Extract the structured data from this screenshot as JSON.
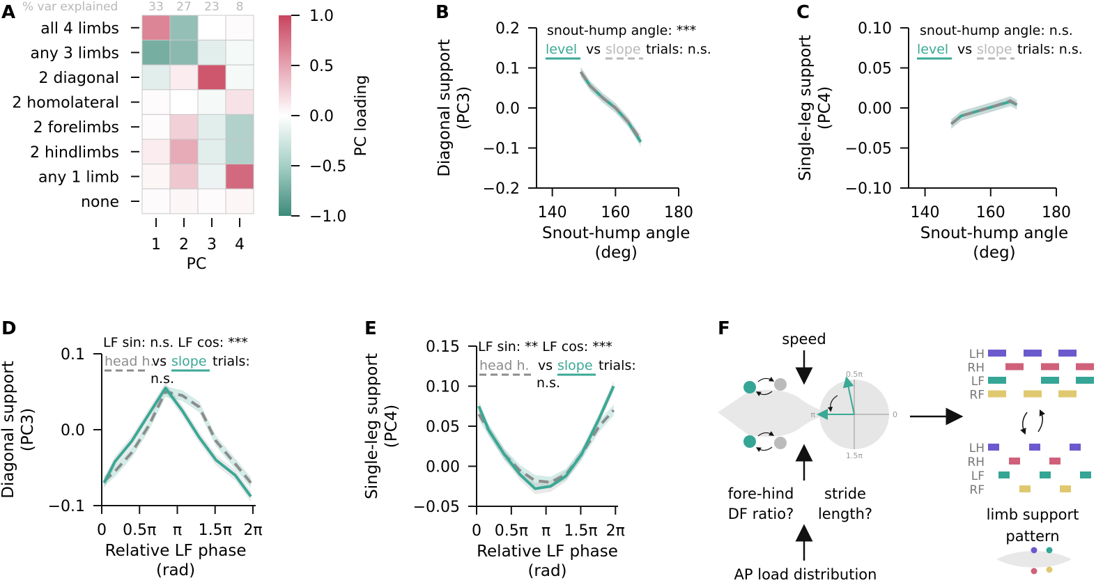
{
  "colors": {
    "teal": "#3aa895",
    "grey": "#8c8c8c",
    "light_grey": "#b8b8b8",
    "heat_pos": "#c8445e",
    "heat_neg": "#3d8b7a",
    "lh": "#6a5acd",
    "rh": "#d0607a",
    "lf": "#35a596",
    "rf": "#e0c870",
    "mouse_body": "#e8e8e8"
  },
  "panels": {
    "A": "A",
    "B": "B",
    "C": "C",
    "D": "D",
    "E": "E",
    "F": "F"
  },
  "chart_data": [
    {
      "id": "A",
      "type": "heatmap",
      "title": "",
      "var_explained_label": "% var explained",
      "var_explained": [
        "33",
        "27",
        "23",
        "8"
      ],
      "rows": [
        "all 4 limbs",
        "any 3 limbs",
        "2 diagonal",
        "2 homolateral",
        "2 forelimbs",
        "2 hindlimbs",
        "any 1 limb",
        "none"
      ],
      "columns": [
        "1",
        "2",
        "3",
        "4"
      ],
      "xlabel": "PC",
      "values": [
        [
          0.65,
          -0.55,
          0.0,
          0.02
        ],
        [
          -0.7,
          -0.6,
          -0.15,
          -0.05
        ],
        [
          -0.15,
          0.1,
          0.9,
          -0.05
        ],
        [
          0.02,
          0.0,
          -0.05,
          0.15
        ],
        [
          0.02,
          0.25,
          -0.15,
          -0.4
        ],
        [
          0.1,
          0.45,
          -0.15,
          -0.4
        ],
        [
          0.05,
          0.3,
          -0.1,
          0.8
        ],
        [
          0.02,
          0.05,
          0.02,
          0.05
        ]
      ],
      "colorbar": {
        "label": "PC loading",
        "ticks": [
          "1.0",
          "0.5",
          "0.0",
          "−0.5",
          "−1.0"
        ],
        "range": [
          -1,
          1
        ]
      }
    },
    {
      "id": "B",
      "type": "line",
      "xlabel": "Snout-hump angle",
      "xlabel2": "(deg)",
      "ylabel": "Diagonal support",
      "ylabel2": "(PC3)",
      "xlim": [
        135,
        180
      ],
      "ylim": [
        -0.2,
        0.2
      ],
      "xticks": [
        "140",
        "160",
        "180"
      ],
      "yticks": [
        "0.2",
        "0.1",
        "0.0",
        "−0.1",
        "−0.2"
      ],
      "annotation1": "snout-hump angle: ***",
      "legend": {
        "a": "level",
        "vs": "vs",
        "b": "slope",
        "tail": "trials: n.s."
      },
      "series": [
        {
          "name": "level",
          "x": [
            149,
            152,
            156,
            160,
            164,
            168
          ],
          "y": [
            0.09,
            0.055,
            0.025,
            0.0,
            -0.035,
            -0.085
          ]
        },
        {
          "name": "slope",
          "x": [
            149,
            152,
            156,
            160,
            164,
            168
          ],
          "y": [
            0.09,
            0.055,
            0.025,
            0.0,
            -0.035,
            -0.08
          ]
        }
      ]
    },
    {
      "id": "C",
      "type": "line",
      "xlabel": "Snout-hump angle",
      "xlabel2": "(deg)",
      "ylabel": "Single-leg support",
      "ylabel2": "(PC4)",
      "xlim": [
        135,
        180
      ],
      "ylim": [
        -0.1,
        0.1
      ],
      "xticks": [
        "140",
        "160",
        "180"
      ],
      "yticks": [
        "0.10",
        "0.05",
        "0.00",
        "−0.05",
        "−0.10"
      ],
      "annotation1": "snout-hump angle: n.s.",
      "legend": {
        "a": "level",
        "vs": "vs",
        "b": "slope",
        "tail": "trials: n.s."
      },
      "series": [
        {
          "name": "level",
          "x": [
            148,
            151,
            156,
            161,
            166,
            168
          ],
          "y": [
            -0.02,
            -0.01,
            -0.004,
            0.002,
            0.008,
            0.004
          ]
        },
        {
          "name": "slope",
          "x": [
            148,
            151,
            156,
            161,
            166,
            168
          ],
          "y": [
            -0.02,
            -0.01,
            -0.004,
            0.002,
            0.009,
            0.004
          ]
        }
      ]
    },
    {
      "id": "D",
      "type": "line",
      "xlabel": "Relative LF phase",
      "xlabel2": "(rad)",
      "ylabel": "Diagonal support",
      "ylabel2": "(PC3)",
      "xlim": [
        0,
        6.4
      ],
      "ylim": [
        -0.1,
        0.1
      ],
      "xticks": [
        "0",
        "0.5π",
        "π",
        "1.5π",
        "2π"
      ],
      "yticks": [
        "0.1",
        "0.0",
        "−0.1"
      ],
      "annotation1": "LF sin: n.s.  LF cos: ***",
      "legend": {
        "a": "head h.",
        "vs": "vs",
        "b": "slope",
        "tail": "trials:",
        "tail2": "n.s."
      },
      "series": [
        {
          "name": "head h.",
          "x": [
            0.1,
            0.55,
            1.25,
            1.95,
            2.65,
            3.35,
            4.05,
            4.75,
            5.55,
            6.2
          ],
          "y": [
            -0.068,
            -0.055,
            -0.03,
            0.005,
            0.05,
            0.045,
            0.03,
            -0.015,
            -0.045,
            -0.07
          ]
        },
        {
          "name": "slope",
          "x": [
            0.1,
            0.55,
            1.25,
            1.95,
            2.65,
            3.35,
            4.05,
            4.75,
            5.55,
            6.2
          ],
          "y": [
            -0.07,
            -0.042,
            -0.015,
            0.02,
            0.055,
            0.025,
            -0.01,
            -0.04,
            -0.06,
            -0.088
          ]
        }
      ]
    },
    {
      "id": "E",
      "type": "line",
      "xlabel": "Relative LF phase",
      "xlabel2": "(rad)",
      "ylabel": "Single-leg support",
      "ylabel2": "(PC4)",
      "xlim": [
        0,
        6.4
      ],
      "ylim": [
        -0.05,
        0.15
      ],
      "xticks": [
        "0",
        "0.5π",
        "π",
        "1.5π",
        "2π"
      ],
      "yticks": [
        "0.15",
        "0.10",
        "0.05",
        "0.00",
        "−0.05"
      ],
      "annotation1": "LF sin: **  LF cos: ***",
      "legend": {
        "a": "head h.",
        "vs": "vs",
        "b": "slope",
        "tail": "trials:",
        "tail2": "n.s."
      },
      "series": [
        {
          "name": "head h.",
          "x": [
            0.1,
            0.55,
            1.25,
            1.95,
            2.65,
            3.35,
            4.05,
            4.75,
            5.55,
            6.2
          ],
          "y": [
            0.065,
            0.045,
            0.015,
            -0.005,
            -0.018,
            -0.02,
            -0.01,
            0.015,
            0.05,
            0.07
          ]
        },
        {
          "name": "slope",
          "x": [
            0.1,
            0.55,
            1.25,
            1.95,
            2.65,
            3.35,
            4.05,
            4.75,
            5.55,
            6.2
          ],
          "y": [
            0.075,
            0.045,
            0.015,
            -0.01,
            -0.028,
            -0.025,
            -0.012,
            0.015,
            0.06,
            0.1
          ]
        }
      ]
    }
  ],
  "diagram_f": {
    "speed": "speed",
    "fore_hind_1": "fore-hind",
    "fore_hind_2": "DF ratio?",
    "stride_1": "stride",
    "stride_2": "length?",
    "ap_load": "AP load distribution",
    "polar_top": "0.5π",
    "polar_left": "π",
    "polar_right": "0",
    "polar_bottom": "1.5π",
    "support_1": "limb support",
    "support_2": "pattern",
    "limb_labels": [
      "LH",
      "RH",
      "LF",
      "RF"
    ]
  }
}
